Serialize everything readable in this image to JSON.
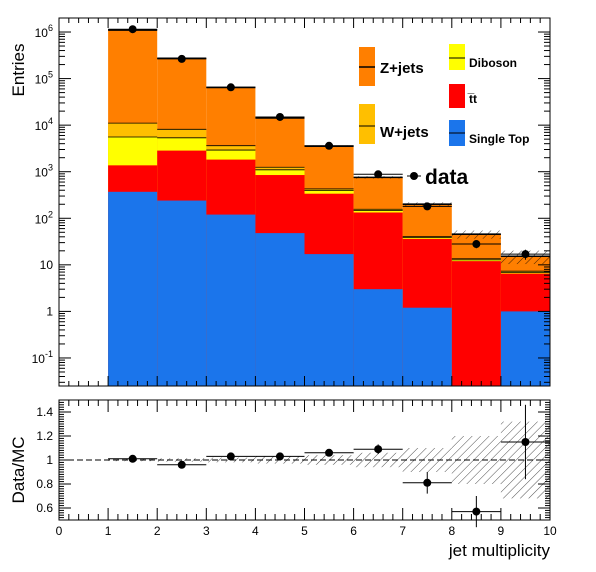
{
  "chart_data": [
    {
      "type": "bar",
      "subtype": "stacked-histogram-log",
      "ylabel": "Entries",
      "yscale": "log",
      "ylim": [
        0.025,
        2000000
      ],
      "xlim": [
        0,
        10
      ],
      "x_bin_edges": [
        1,
        2,
        3,
        4,
        5,
        6,
        7,
        8,
        9,
        10
      ],
      "y_tick_labels": [
        "10",
        "1",
        "10",
        "10",
        "10",
        "10",
        "10",
        "10",
        "1",
        "10"
      ],
      "y_tick_exponents": [
        "6",
        "",
        "5",
        "4",
        "3",
        "2",
        "",
        "",
        "",
        "-1"
      ],
      "stack_series": [
        {
          "name": "Single Top",
          "color": "#1b75eb",
          "values": [
            370,
            240,
            120,
            48,
            17,
            3,
            1.2,
            0,
            1.0
          ]
        },
        {
          "name": "t̅t",
          "color": "#ff0000",
          "values": [
            1000,
            2600,
            1700,
            800,
            320,
            130,
            35,
            12,
            5.5
          ]
        },
        {
          "name": "Diboson",
          "color": "#ffff00",
          "values": [
            4200,
            2500,
            1100,
            250,
            60,
            14,
            2.4,
            0.8,
            0.4
          ]
        },
        {
          "name": "W+jets",
          "color": "#ffbf00",
          "values": [
            5500,
            2800,
            700,
            150,
            30,
            9,
            2,
            0.7,
            0.4
          ]
        },
        {
          "name": "Z+jets",
          "color": "#ff7f00",
          "values": [
            1089000,
            265000,
            61000,
            13000,
            3100,
            600,
            160,
            32,
            8
          ]
        }
      ],
      "data_series": {
        "name": "data",
        "x": [
          1.5,
          2.5,
          3.5,
          4.5,
          5.5,
          6.5,
          7.5,
          8.5,
          9.5
        ],
        "y": [
          1150000,
          265000,
          65000,
          15000,
          3600,
          880,
          180,
          28,
          17
        ]
      },
      "legend": [
        {
          "key": "zjets",
          "label": "Z+jets"
        },
        {
          "key": "wjets",
          "label": "W+jets"
        },
        {
          "key": "diboson",
          "label": "Diboson"
        },
        {
          "key": "ttbar",
          "label": "t̅t"
        },
        {
          "key": "singletop",
          "label": "Single Top"
        },
        {
          "key": "data",
          "label": "data"
        }
      ]
    },
    {
      "type": "scatter",
      "subtype": "ratio",
      "ylabel": "Data/MC",
      "xlabel": "jet multiplicity",
      "xlim": [
        0,
        10
      ],
      "ylim": [
        0.5,
        1.5
      ],
      "x_ticks": [
        "0",
        "1",
        "2",
        "3",
        "4",
        "5",
        "6",
        "7",
        "8",
        "9",
        "10"
      ],
      "y_ticks": [
        "0.6",
        "0.8",
        "1",
        "1.2",
        "1.4"
      ],
      "reference_line": 1.0,
      "x": [
        1.5,
        2.5,
        3.5,
        4.5,
        5.5,
        6.5,
        7.5,
        8.5,
        9.5
      ],
      "y": [
        1.01,
        0.96,
        1.03,
        1.03,
        1.06,
        1.09,
        0.81,
        0.57,
        1.15
      ],
      "y_err": [
        0.002,
        0.004,
        0.008,
        0.012,
        0.02,
        0.04,
        0.09,
        0.13,
        0.31
      ],
      "mc_uncertainty_band": [
        0.01,
        0.015,
        0.02,
        0.03,
        0.04,
        0.06,
        0.1,
        0.2,
        0.32
      ]
    }
  ]
}
